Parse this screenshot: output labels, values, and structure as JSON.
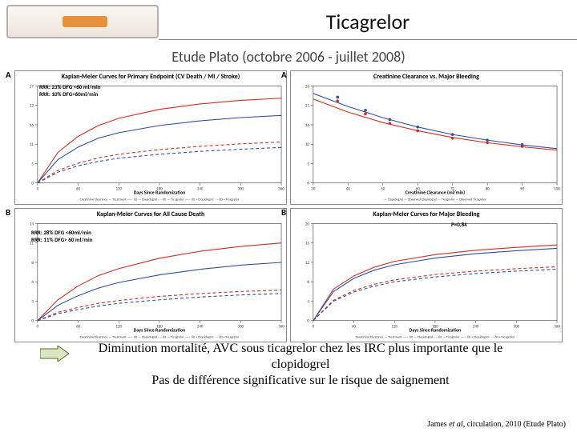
{
  "header": {
    "title": "Ticagrelor",
    "subtitle": "Etude Plato (octobre 2006 - juillet 2008)"
  },
  "panels": {
    "A1": {
      "letter": "A",
      "title": "Kaplan-Meier Curves for Primary Endpoint (CV Death / MI / Stroke)",
      "annot_l1": "RRR: 23% DFG <60 ml/min",
      "annot_l2": "RRR: 10% DFG>60ml/min",
      "xlim": [
        0,
        360
      ],
      "ylim": [
        0,
        27
      ],
      "curves": {
        "red_solid": {
          "color": "#d62a1e",
          "dash": "",
          "pts": [
            [
              0,
              0
            ],
            [
              30,
              8.5
            ],
            [
              60,
              13
            ],
            [
              90,
              16
            ],
            [
              120,
              18
            ],
            [
              180,
              20.5
            ],
            [
              240,
              22
            ],
            [
              300,
              23
            ],
            [
              360,
              23.6
            ]
          ]
        },
        "blue_solid": {
          "color": "#2d4fa8",
          "dash": "",
          "pts": [
            [
              0,
              0
            ],
            [
              30,
              6.5
            ],
            [
              60,
              10
            ],
            [
              90,
              12.5
            ],
            [
              120,
              14
            ],
            [
              180,
              16
            ],
            [
              240,
              17.3
            ],
            [
              300,
              18.2
            ],
            [
              360,
              18.8
            ]
          ]
        },
        "red_dash": {
          "color": "#d62a1e",
          "dash": "4 3",
          "pts": [
            [
              0,
              0
            ],
            [
              30,
              3.5
            ],
            [
              60,
              5.5
            ],
            [
              90,
              7
            ],
            [
              120,
              8
            ],
            [
              180,
              9.3
            ],
            [
              240,
              10.2
            ],
            [
              300,
              10.9
            ],
            [
              360,
              11.4
            ]
          ]
        },
        "blue_dash": {
          "color": "#2d4fa8",
          "dash": "4 3",
          "pts": [
            [
              0,
              0
            ],
            [
              30,
              3
            ],
            [
              60,
              4.8
            ],
            [
              90,
              6
            ],
            [
              120,
              6.9
            ],
            [
              180,
              8
            ],
            [
              240,
              8.8
            ],
            [
              300,
              9.4
            ],
            [
              360,
              9.9
            ]
          ]
        }
      },
      "xlabel": "Days Since Randomization",
      "legend": "Creatinine Clearance — Treatment —— 60 — Clopidogrel  – – 60 — Ticagrelor  —— 60 + Clopidogrel  – – 60 + Ticagrelor"
    },
    "B1": {
      "letter": "B",
      "title": "Kaplan-Meier Curves for All Cause Death",
      "annot_l1": "RRR: 28% DFG <60ml/min",
      "annot_l2": "RRR: 11% DFG> 60 ml/min",
      "xlim": [
        0,
        360
      ],
      "ylim": [
        0,
        14
      ],
      "curves": {
        "red_solid": {
          "color": "#d62a1e",
          "dash": "",
          "pts": [
            [
              0,
              0
            ],
            [
              30,
              3
            ],
            [
              60,
              5
            ],
            [
              90,
              6.5
            ],
            [
              120,
              7.5
            ],
            [
              180,
              9
            ],
            [
              240,
              10
            ],
            [
              300,
              10.7
            ],
            [
              360,
              11.2
            ]
          ]
        },
        "blue_solid": {
          "color": "#2d4fa8",
          "dash": "",
          "pts": [
            [
              0,
              0
            ],
            [
              30,
              2.2
            ],
            [
              60,
              3.6
            ],
            [
              90,
              4.7
            ],
            [
              120,
              5.5
            ],
            [
              180,
              6.6
            ],
            [
              240,
              7.4
            ],
            [
              300,
              8
            ],
            [
              360,
              8.4
            ]
          ]
        },
        "red_dash": {
          "color": "#d62a1e",
          "dash": "4 3",
          "pts": [
            [
              0,
              0
            ],
            [
              30,
              1.2
            ],
            [
              60,
              1.9
            ],
            [
              90,
              2.5
            ],
            [
              120,
              2.9
            ],
            [
              180,
              3.5
            ],
            [
              240,
              3.9
            ],
            [
              300,
              4.2
            ],
            [
              360,
              4.4
            ]
          ]
        },
        "blue_dash": {
          "color": "#2d4fa8",
          "dash": "4 3",
          "pts": [
            [
              0,
              0
            ],
            [
              30,
              1
            ],
            [
              60,
              1.6
            ],
            [
              90,
              2.1
            ],
            [
              120,
              2.5
            ],
            [
              180,
              3
            ],
            [
              240,
              3.4
            ],
            [
              300,
              3.7
            ],
            [
              360,
              3.9
            ]
          ]
        }
      },
      "xlabel": "Days Since Randomization",
      "legend": "Creatinine Clearance — Treatment —— 60 — Clopidogrel  – – 60 — Ticagrelor  —— 60 + Clopidogrel  – – 60 + Ticagrelor"
    },
    "A2": {
      "letter": "A",
      "title": "Creatinine Clearance vs. Major Bleeding",
      "xlim": [
        30,
        100
      ],
      "ylim": [
        0,
        26
      ],
      "curves": {
        "blue_line": {
          "color": "#2d4fa8",
          "dash": "",
          "pts": [
            [
              30,
              24
            ],
            [
              40,
              20.5
            ],
            [
              50,
              17.5
            ],
            [
              60,
              15
            ],
            [
              70,
              13
            ],
            [
              80,
              11.5
            ],
            [
              90,
              10.2
            ],
            [
              100,
              9.2
            ]
          ]
        },
        "red_line": {
          "color": "#d62a1e",
          "dash": "",
          "pts": [
            [
              30,
              22.5
            ],
            [
              40,
              19
            ],
            [
              50,
              16.2
            ],
            [
              60,
              14
            ],
            [
              70,
              12.2
            ],
            [
              80,
              10.8
            ],
            [
              90,
              9.7
            ],
            [
              100,
              8.8
            ]
          ]
        }
      },
      "markers": {
        "blue": {
          "color": "#2d4fa8",
          "pts": [
            [
              37,
              23
            ],
            [
              45,
              19.5
            ],
            [
              52,
              17
            ],
            [
              60,
              15
            ],
            [
              70,
              13
            ],
            [
              80,
              11.5
            ],
            [
              90,
              10.3
            ]
          ]
        },
        "red": {
          "color": "#d62a1e",
          "pts": [
            [
              37,
              22
            ],
            [
              45,
              18.5
            ],
            [
              52,
              16
            ],
            [
              60,
              14
            ],
            [
              70,
              12
            ],
            [
              80,
              10.8
            ],
            [
              90,
              9.8
            ]
          ]
        }
      },
      "xlabel": "Creatinine Clearance (ml/min)",
      "legend": "— Clopidogrel  — Observed Clopidogrel  — Ticagrelor  — Observed Ticagrelor"
    },
    "B2": {
      "letter": "B",
      "title": "Kaplan-Meier Curves for Major Bleeding",
      "p_annot": "P=0,84",
      "xlim": [
        0,
        360
      ],
      "ylim": [
        0,
        20
      ],
      "curves": {
        "red_solid": {
          "color": "#d62a1e",
          "dash": "",
          "pts": [
            [
              0,
              0
            ],
            [
              30,
              6.5
            ],
            [
              60,
              9.2
            ],
            [
              90,
              11
            ],
            [
              120,
              12.2
            ],
            [
              180,
              13.6
            ],
            [
              240,
              14.5
            ],
            [
              300,
              15.1
            ],
            [
              360,
              15.6
            ]
          ]
        },
        "blue_solid": {
          "color": "#2d4fa8",
          "dash": "",
          "pts": [
            [
              0,
              0
            ],
            [
              30,
              6
            ],
            [
              60,
              8.7
            ],
            [
              90,
              10.4
            ],
            [
              120,
              11.5
            ],
            [
              180,
              12.9
            ],
            [
              240,
              13.8
            ],
            [
              300,
              14.4
            ],
            [
              360,
              14.9
            ]
          ]
        },
        "red_dash": {
          "color": "#d62a1e",
          "dash": "4 3",
          "pts": [
            [
              0,
              0
            ],
            [
              30,
              4.2
            ],
            [
              60,
              6.2
            ],
            [
              90,
              7.5
            ],
            [
              120,
              8.4
            ],
            [
              180,
              9.5
            ],
            [
              240,
              10.2
            ],
            [
              300,
              10.7
            ],
            [
              360,
              11.1
            ]
          ]
        },
        "blue_dash": {
          "color": "#2d4fa8",
          "dash": "4 3",
          "pts": [
            [
              0,
              0
            ],
            [
              30,
              4
            ],
            [
              60,
              5.9
            ],
            [
              90,
              7.1
            ],
            [
              120,
              8
            ],
            [
              180,
              9
            ],
            [
              240,
              9.7
            ],
            [
              300,
              10.2
            ],
            [
              360,
              10.6
            ]
          ]
        }
      },
      "xlabel": "Days Since Randomization",
      "legend": "Creatinine Clearance — Treatment —— 60 — Clopidogrel  – – 60 — Ticagrelor  —— 60 + Clopidogrel  – – 60 + Ticagrelor"
    }
  },
  "conclusion": {
    "line1": "Diminution mortalité, AVC  sous ticagrelor chez les IRC plus importante que le clopidogrel",
    "line2": "Pas de différence significative sur le risque de saignement"
  },
  "citation_pre": "James ",
  "citation_em": "et al",
  "citation_post": ", circulation, 2010 (Etude Plato)",
  "style": {
    "axis_color": "#333333",
    "tick_fs": 5
  }
}
